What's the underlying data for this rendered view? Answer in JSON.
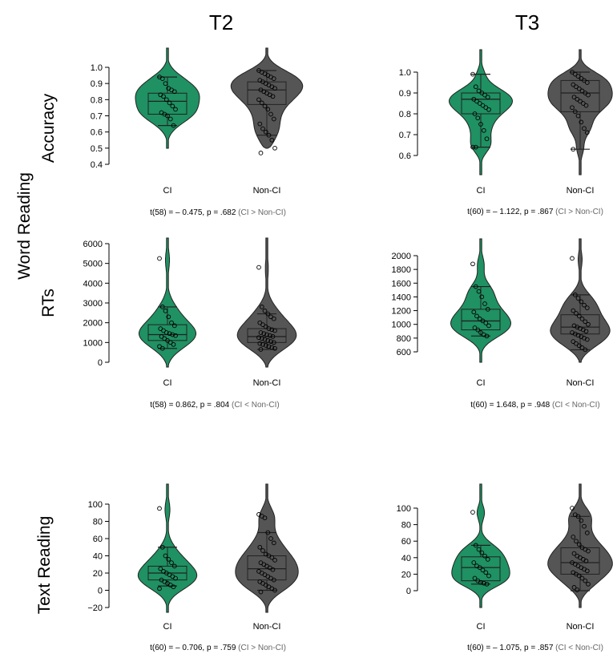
{
  "colors": {
    "ci": "#1f9162",
    "nonci": "#555555"
  },
  "column_titles": [
    "T2",
    "T3"
  ],
  "row_labels": {
    "group1": "Word Reading",
    "accuracy": "Accuracy",
    "rts": "RTs",
    "text": "Text Reading"
  },
  "chart_data": [
    {
      "type": "violin",
      "id": "acc-t2",
      "categories": [
        "CI",
        "Non-CI"
      ],
      "yticks": [
        "1.0",
        "0.9",
        "0.8",
        "0.7",
        "0.6",
        "0.5",
        "0.4"
      ],
      "ylim": [
        0.4,
        1.0
      ],
      "stat": "t(58) = – 0.475, p = .682",
      "direction": "(CI > Non-CI)",
      "series": [
        {
          "category": "CI",
          "min": 0.64,
          "q1": 0.71,
          "median": 0.79,
          "q3": 0.84,
          "max": 0.94,
          "points": [
            0.94,
            0.93,
            0.9,
            0.87,
            0.86,
            0.85,
            0.83,
            0.82,
            0.8,
            0.78,
            0.76,
            0.74,
            0.72,
            0.71,
            0.7,
            0.68,
            0.64
          ]
        },
        {
          "category": "Non-CI",
          "min": 0.58,
          "q1": 0.77,
          "median": 0.86,
          "q3": 0.91,
          "max": 0.98,
          "points": [
            0.98,
            0.97,
            0.96,
            0.95,
            0.94,
            0.93,
            0.92,
            0.91,
            0.9,
            0.89,
            0.88,
            0.87,
            0.86,
            0.85,
            0.84,
            0.83,
            0.82,
            0.8,
            0.78,
            0.76,
            0.74,
            0.71,
            0.68,
            0.65,
            0.62,
            0.6,
            0.58,
            0.55,
            0.5,
            0.47
          ]
        }
      ]
    },
    {
      "type": "violin",
      "id": "acc-t3",
      "categories": [
        "CI",
        "Non-CI"
      ],
      "yticks": [
        "1.0",
        "0.9",
        "0.8",
        "0.7",
        "0.6"
      ],
      "ylim": [
        0.6,
        1.0
      ],
      "stat": "t(60) = – 1.122, p = .867",
      "direction": "(CI > Non-CI)",
      "series": [
        {
          "category": "CI",
          "min": 0.64,
          "q1": 0.8,
          "median": 0.87,
          "q3": 0.9,
          "max": 0.99,
          "points": [
            0.99,
            0.93,
            0.91,
            0.9,
            0.89,
            0.88,
            0.87,
            0.86,
            0.85,
            0.84,
            0.83,
            0.82,
            0.8,
            0.78,
            0.75,
            0.72,
            0.68,
            0.64,
            0.64
          ]
        },
        {
          "category": "Non-CI",
          "min": 0.63,
          "q1": 0.81,
          "median": 0.9,
          "q3": 0.96,
          "max": 1.0,
          "points": [
            1.0,
            0.99,
            0.98,
            0.97,
            0.96,
            0.95,
            0.94,
            0.93,
            0.92,
            0.91,
            0.9,
            0.89,
            0.88,
            0.87,
            0.86,
            0.85,
            0.84,
            0.83,
            0.81,
            0.79,
            0.76,
            0.73,
            0.71,
            0.63
          ]
        }
      ]
    },
    {
      "type": "violin",
      "id": "rt-t2",
      "categories": [
        "CI",
        "Non-CI"
      ],
      "yticks": [
        "6000",
        "5000",
        "4000",
        "3000",
        "2000",
        "1000",
        "0"
      ],
      "ylim": [
        0,
        6000
      ],
      "stat": "t(58) = 0.862, p = .804",
      "direction": "(CI < Non-CI)",
      "series": [
        {
          "category": "CI",
          "min": 700,
          "q1": 1100,
          "median": 1400,
          "q3": 1900,
          "max": 2800,
          "points": [
            5250,
            2800,
            2600,
            2300,
            2000,
            1850,
            1700,
            1600,
            1500,
            1450,
            1400,
            1350,
            1300,
            1200,
            1100,
            1000,
            900,
            800,
            700
          ]
        },
        {
          "category": "Non-CI",
          "min": 650,
          "q1": 1000,
          "median": 1300,
          "q3": 1700,
          "max": 2450,
          "points": [
            4800,
            2800,
            2600,
            2450,
            2300,
            2200,
            2000,
            1900,
            1800,
            1700,
            1650,
            1600,
            1500,
            1450,
            1400,
            1350,
            1300,
            1250,
            1200,
            1150,
            1100,
            1050,
            1000,
            950,
            900,
            850,
            800,
            750,
            700,
            650
          ]
        }
      ]
    },
    {
      "type": "violin",
      "id": "rt-t3",
      "categories": [
        "CI",
        "Non-CI"
      ],
      "yticks": [
        "2000",
        "1800",
        "1600",
        "1400",
        "1200",
        "1000",
        "800",
        "600"
      ],
      "ylim": [
        600,
        2000
      ],
      "stat": "t(60) = 1.648, p = .948",
      "direction": "(CI < Non-CI)",
      "series": [
        {
          "category": "CI",
          "min": 830,
          "q1": 920,
          "median": 1050,
          "q3": 1220,
          "max": 1550,
          "points": [
            1880,
            1550,
            1480,
            1400,
            1300,
            1220,
            1180,
            1120,
            1080,
            1050,
            1020,
            980,
            950,
            920,
            880,
            850,
            830
          ]
        },
        {
          "category": "Non-CI",
          "min": 630,
          "q1": 860,
          "median": 960,
          "q3": 1140,
          "max": 1430,
          "points": [
            1960,
            1430,
            1380,
            1330,
            1280,
            1240,
            1200,
            1160,
            1120,
            1080,
            1040,
            1000,
            980,
            960,
            940,
            920,
            900,
            880,
            860,
            840,
            820,
            800,
            780,
            750,
            720,
            690,
            660,
            630
          ]
        }
      ]
    },
    {
      "type": "violin",
      "id": "text-t2",
      "categories": [
        "CI",
        "Non-CI"
      ],
      "yticks": [
        "100",
        "80",
        "60",
        "40",
        "20",
        "0",
        "−20"
      ],
      "ylim": [
        -20,
        100
      ],
      "stat": "t(60) = – 0.706, p = .759",
      "direction": "(CI > Non-CI)",
      "series": [
        {
          "category": "CI",
          "min": 5,
          "q1": 12,
          "median": 20,
          "q3": 28,
          "max": 50,
          "points": [
            95,
            50,
            40,
            36,
            32,
            28,
            25,
            22,
            20,
            18,
            16,
            14,
            12,
            10,
            8,
            6,
            4,
            2
          ]
        },
        {
          "category": "Non-CI",
          "min": 0,
          "q1": 12,
          "median": 25,
          "q3": 40,
          "max": 67,
          "points": [
            88,
            86,
            84,
            67,
            60,
            55,
            50,
            46,
            42,
            40,
            38,
            35,
            32,
            30,
            28,
            26,
            24,
            22,
            20,
            18,
            16,
            14,
            12,
            10,
            8,
            6,
            4,
            2,
            0,
            -2
          ]
        }
      ]
    },
    {
      "type": "violin",
      "id": "text-t3",
      "categories": [
        "CI",
        "Non-CI"
      ],
      "yticks": [
        "100",
        "80",
        "60",
        "40",
        "20",
        "0"
      ],
      "ylim": [
        0,
        100
      ],
      "stat": "t(60) = – 1.075, p = .857",
      "direction": "(CI < Non-CI)",
      "series": [
        {
          "category": "CI",
          "min": 8,
          "q1": 12,
          "median": 28,
          "q3": 41,
          "max": 55,
          "points": [
            95,
            55,
            50,
            46,
            42,
            38,
            34,
            30,
            28,
            25,
            22,
            18,
            15,
            12,
            10,
            9,
            8
          ]
        },
        {
          "category": "Non-CI",
          "min": 0,
          "q1": 20,
          "median": 34,
          "q3": 52,
          "max": 90,
          "points": [
            100,
            92,
            90,
            85,
            78,
            70,
            65,
            60,
            56,
            52,
            50,
            48,
            45,
            42,
            40,
            38,
            36,
            34,
            32,
            30,
            28,
            26,
            24,
            22,
            20,
            18,
            15,
            12,
            8,
            4,
            1
          ]
        }
      ]
    }
  ]
}
